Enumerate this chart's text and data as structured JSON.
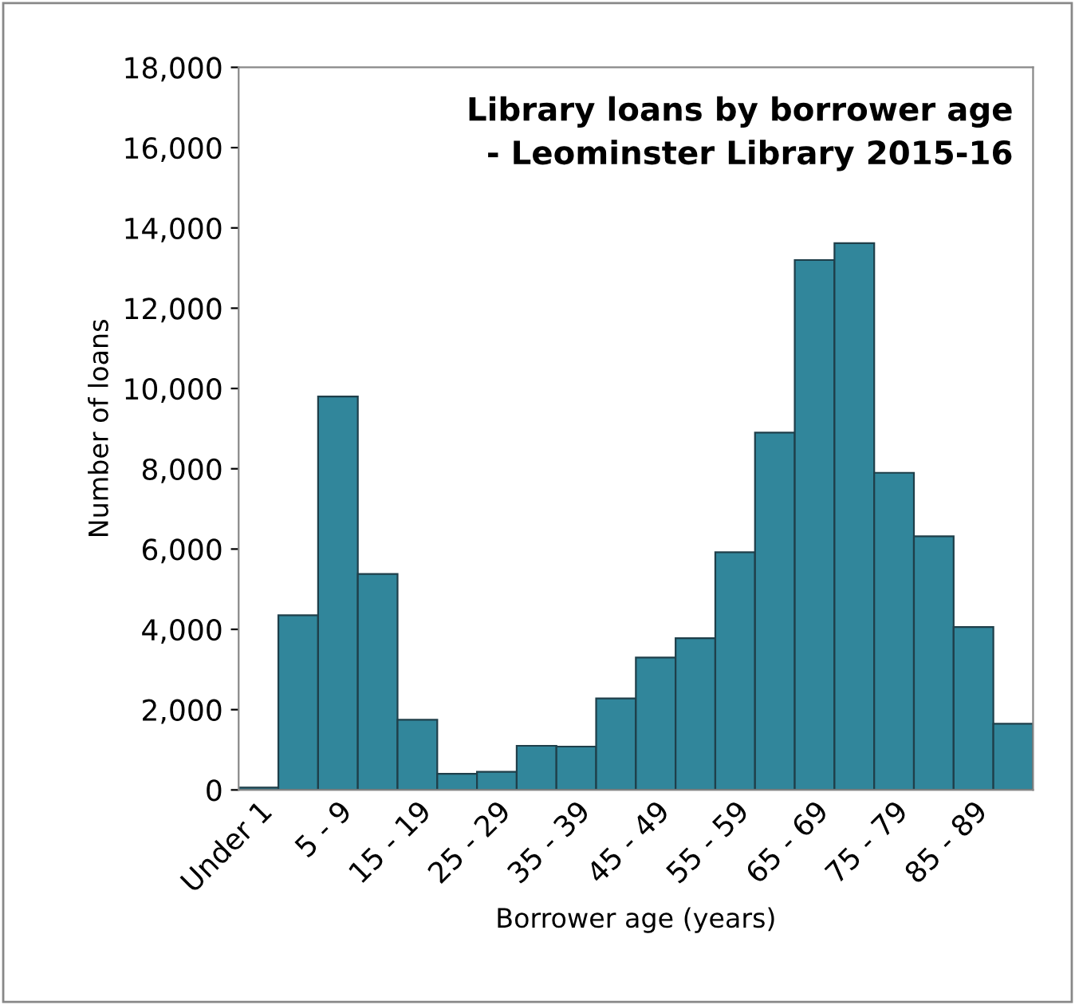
{
  "chart_data": {
    "type": "bar",
    "title": "Library loans by borrower age\n- Leominster Library 2015-16",
    "xlabel": "Borrower age (years)",
    "ylabel": "Number of loans",
    "categories": [
      "Under 1",
      null,
      "5 - 9",
      null,
      "15 - 19",
      null,
      "25 - 29",
      null,
      "35 - 39",
      null,
      "45 - 49",
      null,
      "55 - 59",
      null,
      "65 - 69",
      null,
      "75 - 79",
      null,
      "85 - 89",
      null
    ],
    "values": [
      60,
      4350,
      9800,
      5380,
      1750,
      400,
      450,
      1100,
      1080,
      2280,
      3300,
      3780,
      5920,
      8900,
      13200,
      13620,
      7900,
      6320,
      4060,
      1650
    ],
    "color": "#31869b",
    "ylim": [
      0,
      18000
    ],
    "yticks": [
      0,
      {
        "value": 2000,
        "label": "2,000"
      },
      {
        "value": 4000,
        "label": "4,000"
      },
      {
        "value": 6000,
        "label": "6,000"
      },
      {
        "value": 8000,
        "label": "8,000"
      },
      {
        "value": 10000,
        "label": "10,000"
      },
      {
        "value": 12000,
        "label": "12,000"
      },
      {
        "value": 14000,
        "label": "14,000"
      },
      {
        "value": 16000,
        "label": "16,000"
      },
      {
        "value": 18000,
        "label": "18,000"
      }
    ],
    "grid": false
  }
}
